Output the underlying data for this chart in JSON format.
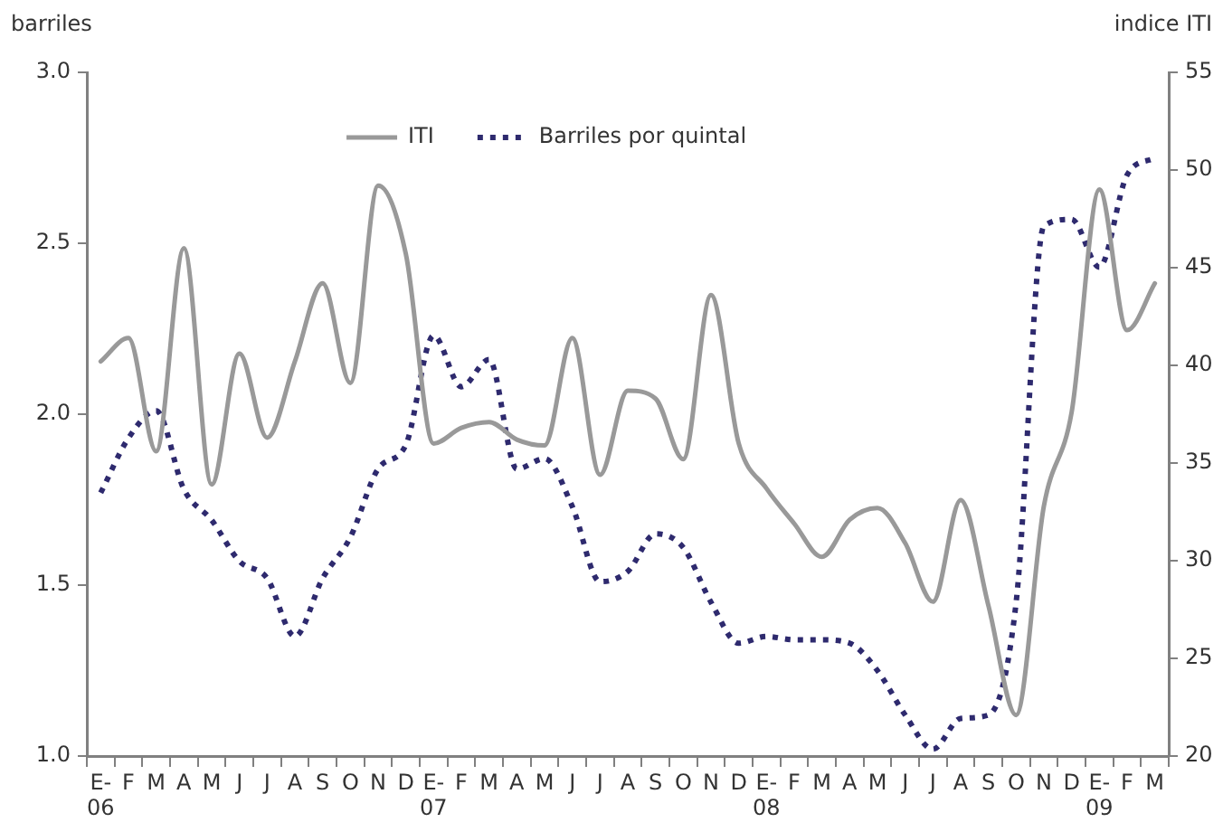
{
  "chart_data": {
    "type": "line",
    "categories": [
      "E-\n06",
      "F",
      "M",
      "A",
      "M",
      "J",
      "J",
      "A",
      "S",
      "O",
      "N",
      "D",
      "E-\n07",
      "F",
      "M",
      "A",
      "M",
      "J",
      "J",
      "A",
      "S",
      "O",
      "N",
      "D",
      "E-\n08",
      "F",
      "M",
      "A",
      "M",
      "J",
      "J",
      "A",
      "S",
      "O",
      "N",
      "D",
      "E-\n09",
      "F",
      "M"
    ],
    "ylabel": "barriles",
    "y2label": "indice ITI",
    "ylim": [
      1.0,
      3.0
    ],
    "yticks": [
      {
        "value": 1.0,
        "label": "1.0"
      },
      {
        "value": 1.5,
        "label": "1.5"
      },
      {
        "value": 2.0,
        "label": "2.0"
      },
      {
        "value": 2.5,
        "label": "2.5"
      },
      {
        "value": 3.0,
        "label": "3.0"
      }
    ],
    "y2lim": [
      20,
      55
    ],
    "y2ticks": [
      20,
      25,
      30,
      35,
      40,
      45,
      50,
      55
    ],
    "series": [
      {
        "name": "ITI",
        "color": "#999999",
        "axis": "y2",
        "line_style": "solid",
        "values": [
          40.2,
          41.4,
          35.6,
          46.0,
          33.9,
          40.6,
          36.3,
          40.2,
          44.2,
          39.1,
          49.2,
          45.7,
          36.0,
          36.8,
          37.1,
          36.2,
          35.9,
          41.4,
          34.4,
          38.7,
          38.3,
          35.2,
          43.6,
          36.0,
          33.7,
          31.9,
          30.2,
          32.1,
          32.7,
          30.9,
          27.9,
          33.1,
          27.7,
          22.1,
          32.8,
          37.6,
          49.0,
          41.8,
          44.2
        ]
      },
      {
        "name": "Barriles por quintal",
        "color": "#2e2a6e",
        "line_style": "dotted",
        "values": [
          1.77,
          1.93,
          2.01,
          1.78,
          1.69,
          1.57,
          1.52,
          1.35,
          1.52,
          1.64,
          1.84,
          1.91,
          2.23,
          2.08,
          2.16,
          1.84,
          1.87,
          1.73,
          1.51,
          1.54,
          1.65,
          1.61,
          1.45,
          1.33,
          1.35,
          1.34,
          1.34,
          1.33,
          1.25,
          1.12,
          1.02,
          1.11,
          1.12,
          1.45,
          2.55,
          2.57,
          2.43,
          2.7,
          2.75
        ]
      }
    ],
    "legend": "top",
    "grid": false,
    "marker": "none"
  }
}
